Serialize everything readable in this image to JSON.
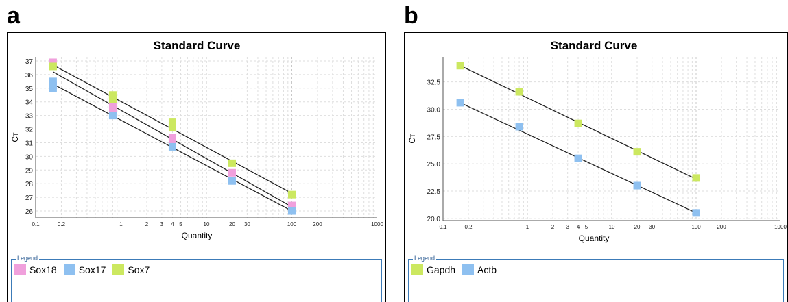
{
  "panels": [
    {
      "letter": "a",
      "legend_title": "Legend",
      "chart_data": {
        "type": "scatter",
        "title": "Standard Curve",
        "xlabel": "Quantity",
        "ylabel": "Cᴛ",
        "xscale": "log",
        "xlim": [
          0.1,
          1000
        ],
        "ylim": [
          25.5,
          37.3
        ],
        "x_ticks": [
          0.1,
          0.2,
          1,
          2,
          3,
          4,
          5,
          10,
          20,
          30,
          100,
          200,
          1000
        ],
        "x_tick_labels": [
          "0.1",
          "0.2",
          "1",
          "2",
          "3",
          "4",
          "5",
          "10",
          "20",
          "30",
          "100",
          "200",
          "1000"
        ],
        "y_ticks": [
          26,
          27,
          28,
          29,
          30,
          31,
          32,
          33,
          34,
          35,
          36,
          37
        ],
        "y_tick_labels": [
          "26",
          "27",
          "28",
          "29",
          "30",
          "31",
          "32",
          "33",
          "34",
          "35",
          "36",
          "37"
        ],
        "grid": true,
        "legend_position": "bottom",
        "series": [
          {
            "name": "Sox18",
            "color": "#f0a0dc",
            "x": [
              0.16,
              0.16,
              0.8,
              0.8,
              4,
              4,
              20,
              100
            ],
            "y": [
              36.9,
              35.2,
              33.8,
              33.4,
              31.4,
              31.1,
              28.8,
              26.4
            ],
            "fit": {
              "x": [
                0.16,
                100
              ],
              "y": [
                36.2,
                26.3
              ]
            }
          },
          {
            "name": "Sox17",
            "color": "#8ec0f0",
            "x": [
              0.16,
              0.16,
              0.8,
              4,
              20,
              100
            ],
            "y": [
              35.5,
              35.0,
              33.0,
              30.7,
              28.2,
              26.0
            ],
            "fit": {
              "x": [
                0.16,
                100
              ],
              "y": [
                35.3,
                26.0
              ]
            }
          },
          {
            "name": "Sox7",
            "color": "#cce860",
            "x": [
              0.16,
              0.8,
              0.8,
              4,
              4,
              20,
              100
            ],
            "y": [
              36.6,
              34.5,
              34.2,
              32.5,
              32.1,
              29.5,
              27.2
            ],
            "fit": {
              "x": [
                0.16,
                100
              ],
              "y": [
                36.7,
                27.3
              ]
            }
          }
        ]
      }
    },
    {
      "letter": "b",
      "legend_title": "Legend",
      "chart_data": {
        "type": "scatter",
        "title": "Standard Curve",
        "xlabel": "Quantity",
        "ylabel": "Cᴛ",
        "xscale": "log",
        "xlim": [
          0.1,
          1000
        ],
        "ylim": [
          19.8,
          34.8
        ],
        "x_ticks": [
          0.1,
          0.2,
          1,
          2,
          3,
          4,
          5,
          10,
          20,
          30,
          100,
          200,
          1000
        ],
        "x_tick_labels": [
          "0.1",
          "0.2",
          "1",
          "2",
          "3",
          "4",
          "5",
          "10",
          "20",
          "30",
          "100",
          "200",
          "1000"
        ],
        "y_ticks": [
          20.0,
          22.5,
          25.0,
          27.5,
          30.0,
          32.5
        ],
        "y_tick_labels": [
          "20.0",
          "22.5",
          "25.0",
          "27.5",
          "30.0",
          "32.5"
        ],
        "grid": true,
        "legend_position": "bottom",
        "series": [
          {
            "name": "Gapdh",
            "color": "#cce860",
            "x": [
              0.16,
              0.8,
              4,
              20,
              100
            ],
            "y": [
              34.0,
              31.6,
              28.7,
              26.1,
              23.7
            ],
            "fit": {
              "x": [
                0.16,
                100
              ],
              "y": [
                34.0,
                23.6
              ]
            }
          },
          {
            "name": "Actb",
            "color": "#8ec0f0",
            "x": [
              0.16,
              0.8,
              4,
              20,
              100
            ],
            "y": [
              30.6,
              28.4,
              25.5,
              23.0,
              20.5
            ],
            "fit": {
              "x": [
                0.16,
                100
              ],
              "y": [
                30.6,
                20.5
              ]
            }
          }
        ]
      }
    }
  ]
}
